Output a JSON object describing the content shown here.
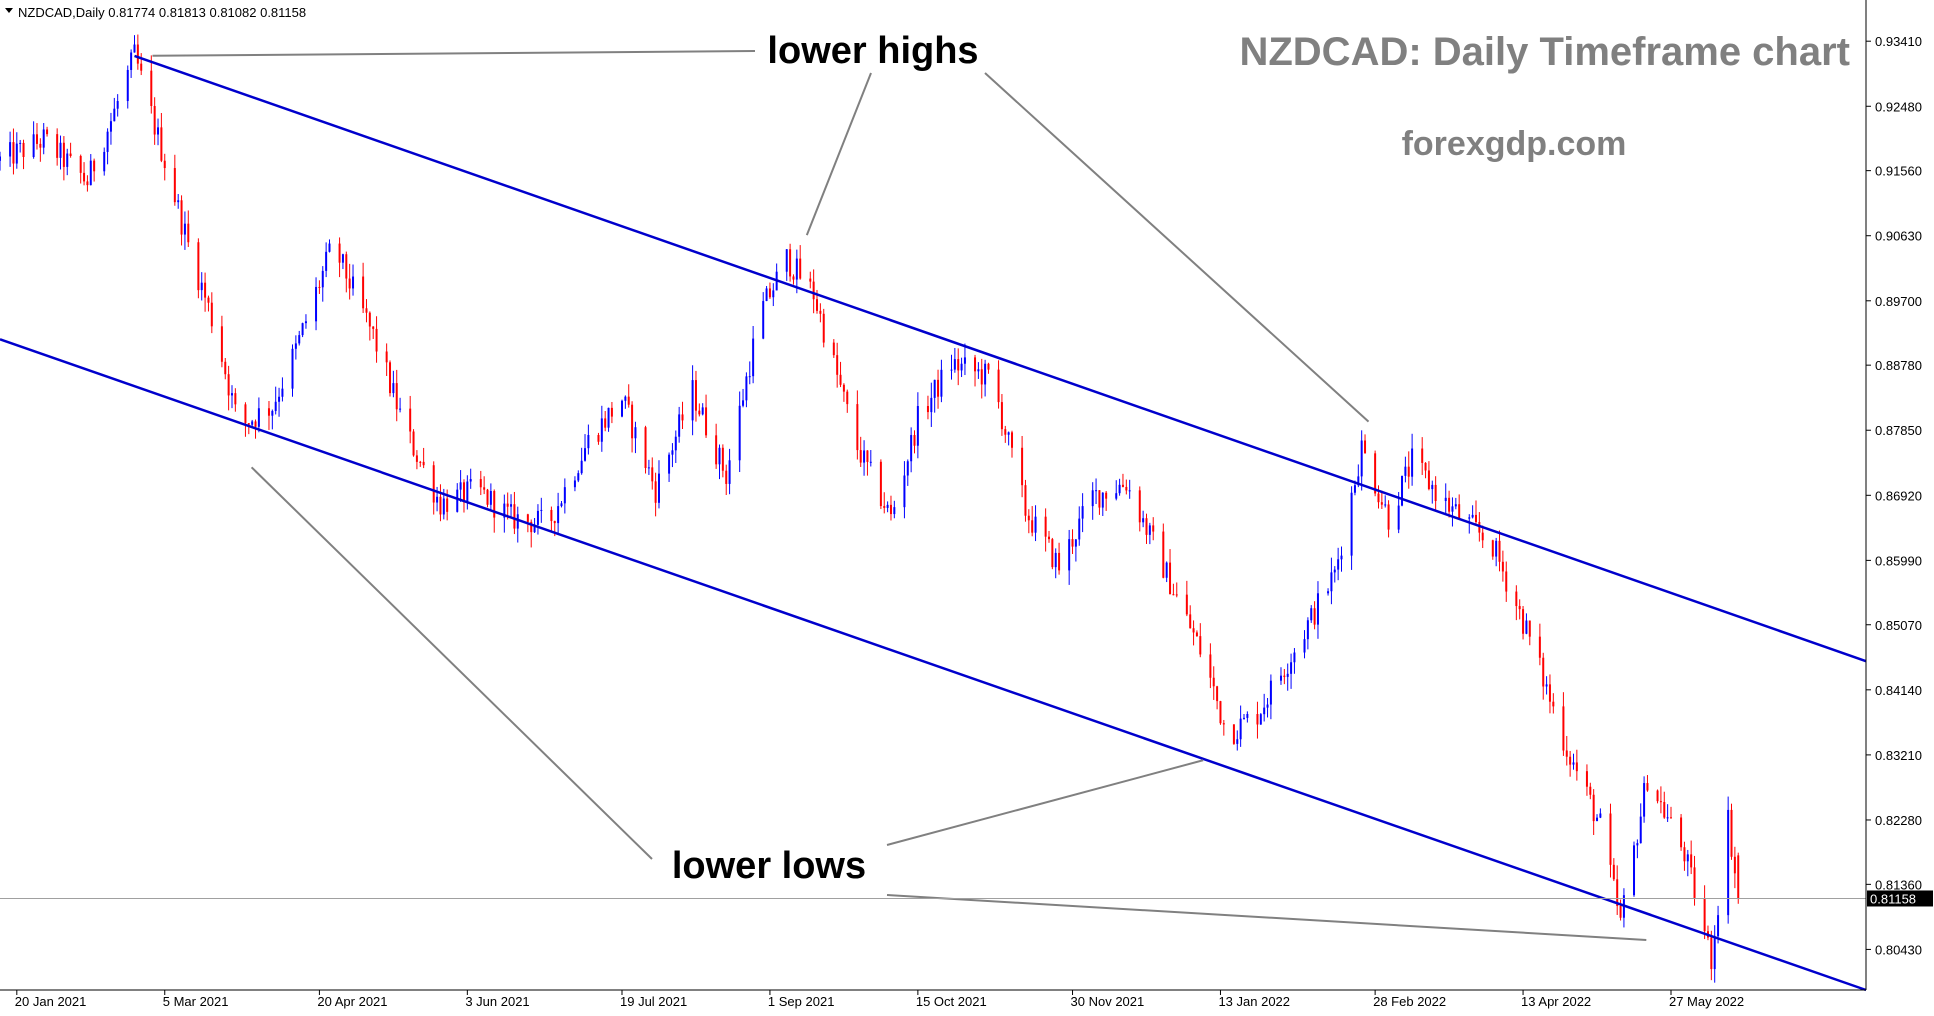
{
  "header": {
    "symbol_line": "NZDCAD,Daily  0.81774 0.81813 0.81082 0.81158",
    "title": "NZDCAD: Daily Timeframe chart",
    "website": "forexgdp.com"
  },
  "annotations": {
    "lower_highs": "lower highs",
    "lower_lows": "lower lows"
  },
  "colors": {
    "bull_candle": "#0000ff",
    "bear_candle": "#ff0000",
    "trendline": "#0000cc",
    "annotation_line": "#808080",
    "text_gray": "#808080",
    "current_price_line": "#a0a0a0"
  },
  "chart_data": {
    "type": "candlestick",
    "title": "NZDCAD: Daily Timeframe chart",
    "ylim": [
      0.7985,
      0.9357
    ],
    "y_ticks": [
      "0.93410",
      "0.92480",
      "0.91560",
      "0.90630",
      "0.89700",
      "0.88780",
      "0.87850",
      "0.86920",
      "0.85990",
      "0.85070",
      "0.84140",
      "0.83210",
      "0.82280",
      "0.81360",
      "0.80430"
    ],
    "x_range": [
      "2021-01-15",
      "2022-07-24"
    ],
    "x_ticks": [
      {
        "date": "2021-01-20",
        "label": "20 Jan 2021"
      },
      {
        "date": "2021-03-05",
        "label": "5 Mar 2021"
      },
      {
        "date": "2021-04-20",
        "label": "20 Apr 2021"
      },
      {
        "date": "2021-06-03",
        "label": "3 Jun 2021"
      },
      {
        "date": "2021-07-19",
        "label": "19 Jul 2021"
      },
      {
        "date": "2021-09-01",
        "label": "1 Sep 2021"
      },
      {
        "date": "2021-10-15",
        "label": "15 Oct 2021"
      },
      {
        "date": "2021-11-30",
        "label": "30 Nov 2021"
      },
      {
        "date": "2022-01-13",
        "label": "13 Jan 2022"
      },
      {
        "date": "2022-02-28",
        "label": "28 Feb 2022"
      },
      {
        "date": "2022-04-13",
        "label": "13 Apr 2022"
      },
      {
        "date": "2022-05-27",
        "label": "27 May 2022"
      }
    ],
    "current_price": 0.81158,
    "current_price_label": "0.81158",
    "ohlc_last": {
      "open": 0.81774,
      "high": 0.81813,
      "low": 0.81082,
      "close": 0.81158
    },
    "price_path": [
      [
        "2021-01-15",
        0.917
      ],
      [
        "2021-01-28",
        0.92
      ],
      [
        "2021-02-10",
        0.914
      ],
      [
        "2021-02-18",
        0.924
      ],
      [
        "2021-02-24",
        0.932
      ],
      [
        "2021-03-05",
        0.917
      ],
      [
        "2021-03-12",
        0.905
      ],
      [
        "2021-03-20",
        0.893
      ],
      [
        "2021-03-27",
        0.879
      ],
      [
        "2021-04-06",
        0.882
      ],
      [
        "2021-04-13",
        0.89
      ],
      [
        "2021-04-24",
        0.905
      ],
      [
        "2021-05-06",
        0.892
      ],
      [
        "2021-05-16",
        0.878
      ],
      [
        "2021-05-26",
        0.868
      ],
      [
        "2021-06-06",
        0.87
      ],
      [
        "2021-06-16",
        0.866
      ],
      [
        "2021-06-27",
        0.865
      ],
      [
        "2021-07-09",
        0.877
      ],
      [
        "2021-07-19",
        0.883
      ],
      [
        "2021-07-29",
        0.87
      ],
      [
        "2021-08-09",
        0.884
      ],
      [
        "2021-08-19",
        0.872
      ],
      [
        "2021-08-29",
        0.895
      ],
      [
        "2021-09-06",
        0.903
      ],
      [
        "2021-09-14",
        0.898
      ],
      [
        "2021-09-27",
        0.876
      ],
      [
        "2021-10-07",
        0.866
      ],
      [
        "2021-10-15",
        0.88
      ],
      [
        "2021-10-25",
        0.888
      ],
      [
        "2021-11-06",
        0.886
      ],
      [
        "2021-11-16",
        0.867
      ],
      [
        "2021-11-26",
        0.859
      ],
      [
        "2021-12-06",
        0.869
      ],
      [
        "2021-12-16",
        0.871
      ],
      [
        "2021-12-27",
        0.859
      ],
      [
        "2022-01-08",
        0.846
      ],
      [
        "2022-01-15",
        0.835
      ],
      [
        "2022-01-24",
        0.838
      ],
      [
        "2022-02-05",
        0.848
      ],
      [
        "2022-02-16",
        0.858
      ],
      [
        "2022-02-24",
        0.876
      ],
      [
        "2022-03-04",
        0.866
      ],
      [
        "2022-03-11",
        0.874
      ],
      [
        "2022-03-21",
        0.868
      ],
      [
        "2022-04-04",
        0.862
      ],
      [
        "2022-04-14",
        0.85
      ],
      [
        "2022-04-26",
        0.833
      ],
      [
        "2022-05-06",
        0.822
      ],
      [
        "2022-05-12",
        0.808
      ],
      [
        "2022-05-20",
        0.829
      ],
      [
        "2022-05-31",
        0.818
      ],
      [
        "2022-06-08",
        0.803
      ],
      [
        "2022-06-13",
        0.823
      ],
      [
        "2022-06-16",
        0.8116
      ]
    ],
    "trendlines": [
      {
        "from": [
          "2021-02-24",
          0.932
        ],
        "to": [
          "2022-07-24",
          0.8455
        ]
      },
      {
        "from": [
          "2021-01-15",
          0.8915
        ],
        "to": [
          "2022-07-24",
          0.7985
        ]
      }
    ],
    "callouts": [
      {
        "label": "lower highs",
        "targets": [
          [
            "2021-02-24",
            0.932
          ],
          [
            "2021-09-10",
            0.904
          ],
          [
            "2022-03-02",
            0.878
          ]
        ]
      },
      {
        "label": "lower lows",
        "targets": [
          [
            "2021-03-27",
            0.875
          ],
          [
            "2022-01-13",
            0.832
          ],
          [
            "2022-05-25",
            0.8055
          ]
        ]
      }
    ]
  }
}
